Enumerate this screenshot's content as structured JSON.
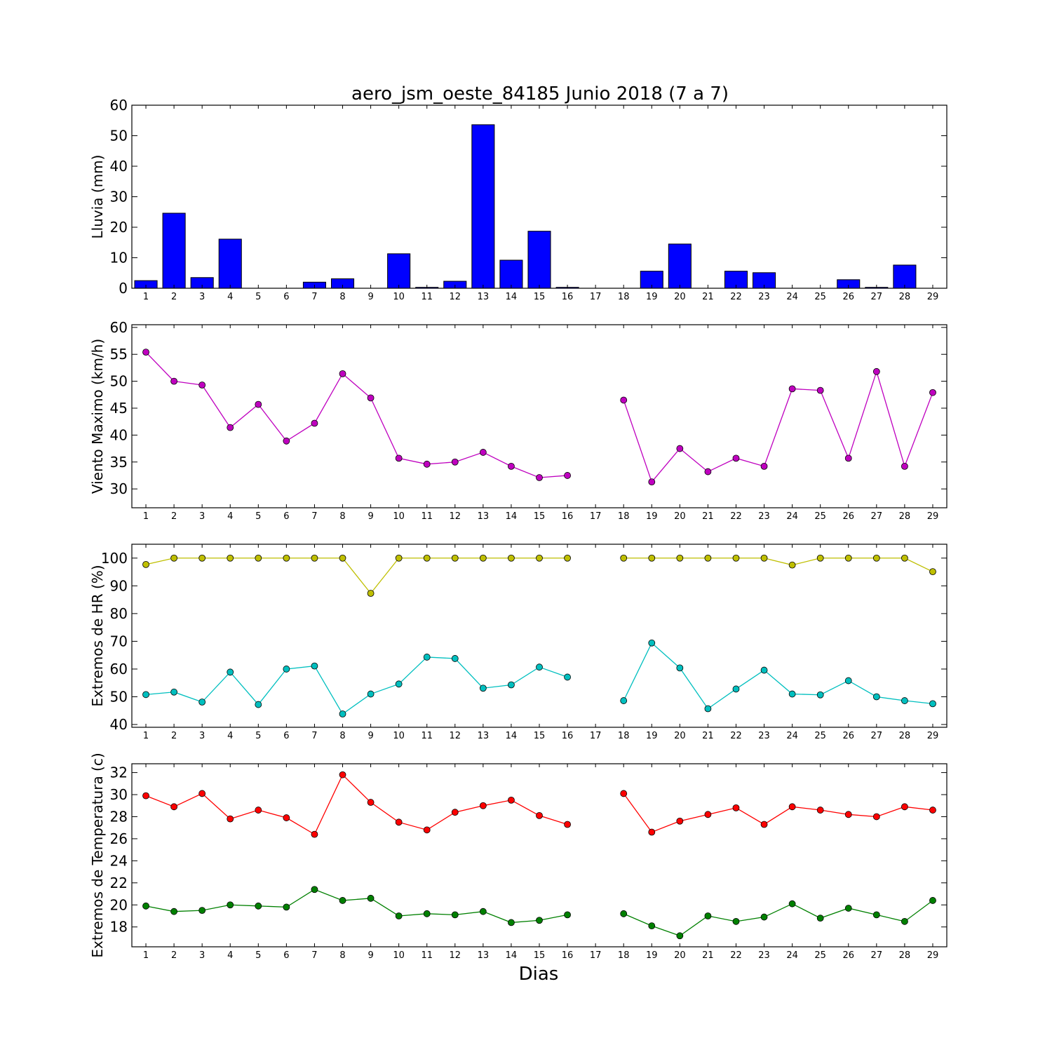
{
  "figure": {
    "title": "aero_jsm_oeste_84185 Junio 2018  (7 a 7)",
    "xlabel": "Dias"
  },
  "chart_data": [
    {
      "type": "bar",
      "ylabel": "Lluvia (mm)",
      "categories": [
        "1",
        "2",
        "3",
        "4",
        "5",
        "6",
        "7",
        "8",
        "9",
        "10",
        "11",
        "12",
        "13",
        "14",
        "15",
        "16",
        "17",
        "18",
        "19",
        "20",
        "21",
        "22",
        "23",
        "24",
        "25",
        "26",
        "27",
        "28",
        "29"
      ],
      "values": [
        2.5,
        24.6,
        3.5,
        16.1,
        0,
        0,
        2,
        3.1,
        0,
        11.3,
        0.3,
        2.3,
        53.6,
        9.2,
        18.7,
        0.3,
        null,
        0,
        5.6,
        14.5,
        null,
        5.6,
        5.1,
        0,
        0,
        2.8,
        0.3,
        7.6,
        null
      ],
      "ylim": [
        0,
        60
      ],
      "yticks": [
        0,
        10,
        20,
        30,
        40,
        50,
        60
      ],
      "colors": [
        "#0000ff"
      ]
    },
    {
      "type": "line",
      "ylabel": "Viento Maximo (km/h)",
      "categories": [
        "1",
        "2",
        "3",
        "4",
        "5",
        "6",
        "7",
        "8",
        "9",
        "10",
        "11",
        "12",
        "13",
        "14",
        "15",
        "16",
        "17",
        "18",
        "19",
        "20",
        "21",
        "22",
        "23",
        "24",
        "25",
        "26",
        "27",
        "28",
        "29"
      ],
      "series": [
        {
          "values": [
            55.4,
            50.0,
            49.3,
            41.4,
            45.7,
            38.9,
            42.2,
            51.4,
            46.9,
            35.7,
            34.6,
            35.0,
            36.8,
            34.2,
            32.1,
            32.5,
            null,
            46.5,
            31.3,
            37.5,
            33.2,
            35.7,
            34.2,
            48.6,
            48.3,
            35.7,
            51.8,
            34.2,
            47.9
          ],
          "color": "#bf00bf"
        }
      ],
      "ylim": [
        26.5,
        60.5
      ],
      "yticks": [
        30,
        35,
        40,
        45,
        50,
        55,
        60
      ]
    },
    {
      "type": "line",
      "ylabel": "Extremos de HR (%)",
      "categories": [
        "1",
        "2",
        "3",
        "4",
        "5",
        "6",
        "7",
        "8",
        "9",
        "10",
        "11",
        "12",
        "13",
        "14",
        "15",
        "16",
        "17",
        "18",
        "19",
        "20",
        "21",
        "22",
        "23",
        "24",
        "25",
        "26",
        "27",
        "28",
        "29"
      ],
      "series": [
        {
          "values": [
            97.7,
            100,
            100,
            100,
            100,
            100,
            100,
            100,
            87.3,
            100,
            100,
            100,
            100,
            100,
            100,
            100,
            null,
            100,
            100,
            100,
            100,
            100,
            100,
            97.5,
            100,
            100,
            100,
            100,
            95.1
          ],
          "color": "#bfbf00"
        },
        {
          "values": [
            50.8,
            51.7,
            48.1,
            58.9,
            47.2,
            60.0,
            61.1,
            43.8,
            51.0,
            54.6,
            64.3,
            63.8,
            53.1,
            54.3,
            60.7,
            57.1,
            null,
            48.6,
            69.4,
            60.4,
            45.7,
            52.8,
            59.6,
            51.0,
            50.7,
            55.8,
            50.0,
            48.6,
            47.5
          ],
          "color": "#00bfbf"
        }
      ],
      "ylim": [
        39,
        105
      ],
      "yticks": [
        40,
        50,
        60,
        70,
        80,
        90,
        100
      ]
    },
    {
      "type": "line",
      "ylabel": "Extremos de Temperatura (c)",
      "categories": [
        "1",
        "2",
        "3",
        "4",
        "5",
        "6",
        "7",
        "8",
        "9",
        "10",
        "11",
        "12",
        "13",
        "14",
        "15",
        "16",
        "17",
        "18",
        "19",
        "20",
        "21",
        "22",
        "23",
        "24",
        "25",
        "26",
        "27",
        "28",
        "29"
      ],
      "series": [
        {
          "values": [
            29.9,
            28.9,
            30.1,
            27.8,
            28.6,
            27.9,
            26.4,
            31.8,
            29.3,
            27.5,
            26.8,
            28.4,
            29.0,
            29.5,
            28.1,
            27.3,
            null,
            30.1,
            26.6,
            27.6,
            28.2,
            28.8,
            27.3,
            28.9,
            28.6,
            28.2,
            28.0,
            28.9,
            28.6
          ],
          "color": "#ff0000"
        },
        {
          "values": [
            19.9,
            19.4,
            19.5,
            20.0,
            19.9,
            19.8,
            21.4,
            20.4,
            20.6,
            19.0,
            19.2,
            19.1,
            19.4,
            18.4,
            18.6,
            19.1,
            null,
            19.2,
            18.1,
            17.2,
            19.0,
            18.5,
            18.9,
            20.1,
            18.8,
            19.7,
            19.1,
            18.5,
            20.4
          ],
          "color": "#008000"
        }
      ],
      "ylim": [
        16.2,
        32.8
      ],
      "yticks": [
        18,
        20,
        22,
        24,
        26,
        28,
        30,
        32
      ]
    }
  ]
}
